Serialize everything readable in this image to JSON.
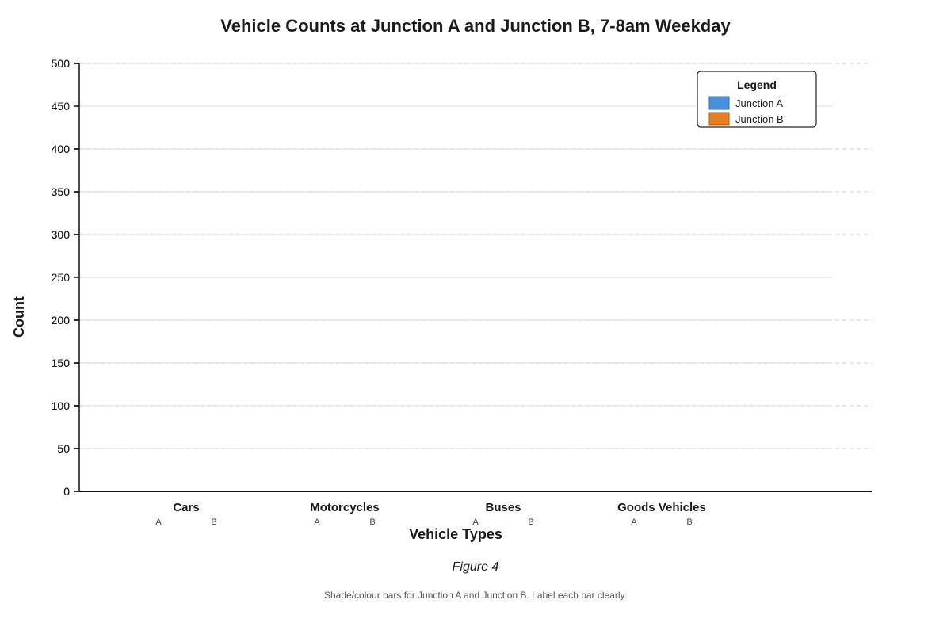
{
  "colors": {
    "junction_a": "#4a90d9",
    "junction_b": "#e67e22",
    "grid_solid": "#dddddd",
    "grid_dashed": "#cccccc",
    "axis": "#111111"
  },
  "figure_label": "Figure 4",
  "footnote": "Shade/colour bars for Junction A and Junction B. Label each bar clearly.",
  "chart_data": {
    "type": "bar",
    "title": "Vehicle Counts at Junction A and Junction B, 7-8am Weekday",
    "xlabel": "Vehicle Types",
    "ylabel": "Count",
    "categories": [
      "Cars",
      "Motorcycles",
      "Buses",
      "Goods Vehicles"
    ],
    "bar_labels": [
      "A",
      "B"
    ],
    "series": [
      {
        "name": "Junction A",
        "values": [
          null,
          null,
          null,
          null
        ]
      },
      {
        "name": "Junction B",
        "values": [
          null,
          null,
          null,
          null
        ]
      }
    ],
    "legend": {
      "title": "Legend",
      "placement": "top-right"
    },
    "grid": true,
    "y_axes": [
      {
        "ylim": [
          0,
          500
        ],
        "ticks": [
          0,
          50,
          100,
          150,
          200,
          250,
          300,
          350,
          400,
          450,
          500
        ],
        "grid_style": "solid"
      },
      {
        "ylim": [
          0,
          500
        ],
        "ticks": [
          0,
          50,
          100,
          150,
          200,
          300,
          350,
          400,
          500
        ],
        "grid_style": "dashed"
      }
    ]
  }
}
